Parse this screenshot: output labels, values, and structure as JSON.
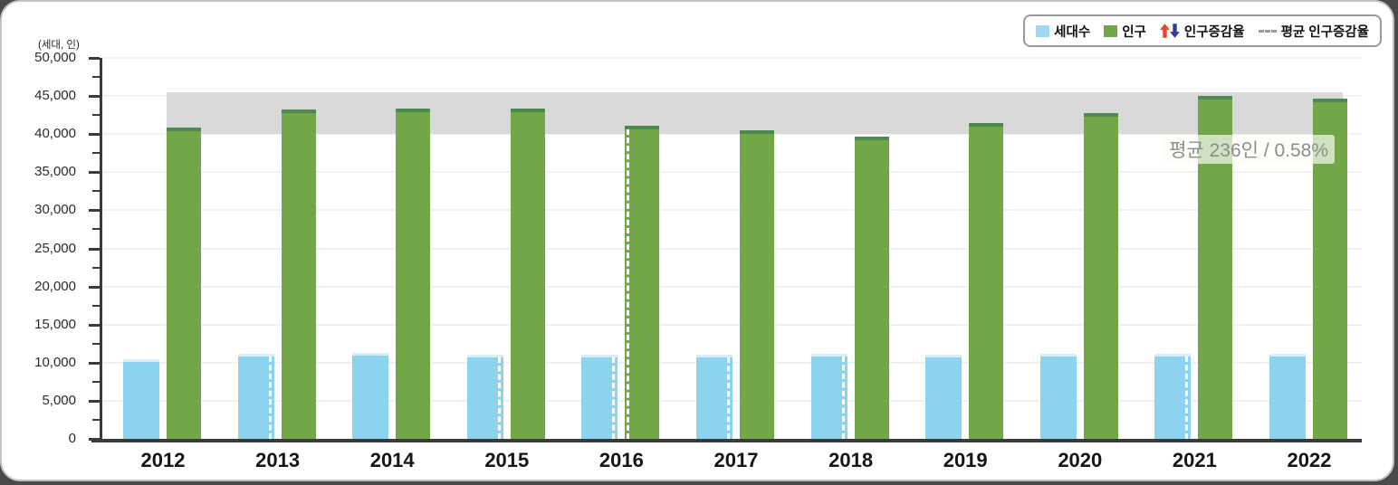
{
  "legend": {
    "items": [
      {
        "label": "세대수",
        "icon": "blue-square"
      },
      {
        "label": "인구",
        "icon": "green-square"
      },
      {
        "label": "인구증감율",
        "icon": "up-down-arrows"
      },
      {
        "label": "평균 인구증감율",
        "icon": "gray-dashed-line"
      }
    ],
    "arrow_up_color": "#e04a2f",
    "arrow_down_color": "#2b3f9a"
  },
  "chart_data": {
    "type": "bar",
    "unit_label": "(세대, 인)",
    "categories": [
      "2012",
      "2013",
      "2014",
      "2015",
      "2016",
      "2017",
      "2018",
      "2019",
      "2020",
      "2021",
      "2022"
    ],
    "series": [
      {
        "name": "세대수",
        "color": "#8ed3ee",
        "cap_color": "#d8effa",
        "values": [
          10450,
          11150,
          11300,
          11050,
          11100,
          11100,
          11150,
          11100,
          11150,
          11150,
          11150
        ]
      },
      {
        "name": "인구",
        "color": "#72a748",
        "cap_color": "#4c8a51",
        "values": [
          40800,
          43200,
          43400,
          43300,
          41100,
          40500,
          39700,
          41400,
          42800,
          45000,
          44600
        ]
      }
    ],
    "ylim": [
      0,
      50000
    ],
    "y_ticks": [
      0,
      5000,
      10000,
      15000,
      20000,
      25000,
      30000,
      35000,
      40000,
      45000,
      50000
    ],
    "minor_tick_step": 2500,
    "grid": true,
    "legend_position": "top-right",
    "average_band": {
      "from": 40000,
      "to": 45500,
      "color": "#d9d9d9",
      "label": "평균 236인 / 0.58%"
    },
    "change_markers": {
      "household_dash_years": [
        "2013",
        "2015",
        "2016",
        "2017",
        "2018",
        "2021"
      ],
      "population_dash_years": [
        "2016"
      ]
    }
  }
}
